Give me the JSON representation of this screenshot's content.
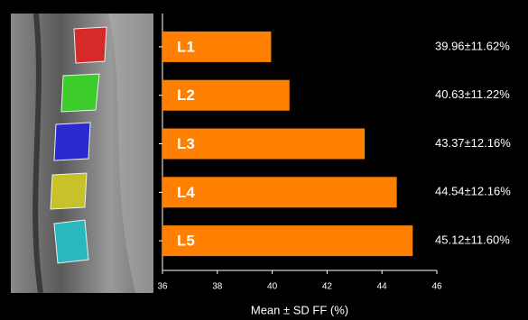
{
  "chart_data": {
    "type": "bar",
    "orientation": "horizontal",
    "x_label": "Mean ± SD FF (%)",
    "categories": [
      "L1",
      "L2",
      "L3",
      "L4",
      "L5"
    ],
    "values": [
      39.96,
      40.63,
      43.37,
      44.54,
      45.12
    ],
    "value_labels": [
      "39.96±11.62%",
      "40.63±11.22%",
      "43.37±12.16%",
      "44.54±12.16%",
      "45.12±11.60%"
    ],
    "color": "#ff8000",
    "xlim": [
      36,
      46
    ],
    "xticks": [
      36,
      38,
      40,
      42,
      44,
      46
    ]
  }
}
